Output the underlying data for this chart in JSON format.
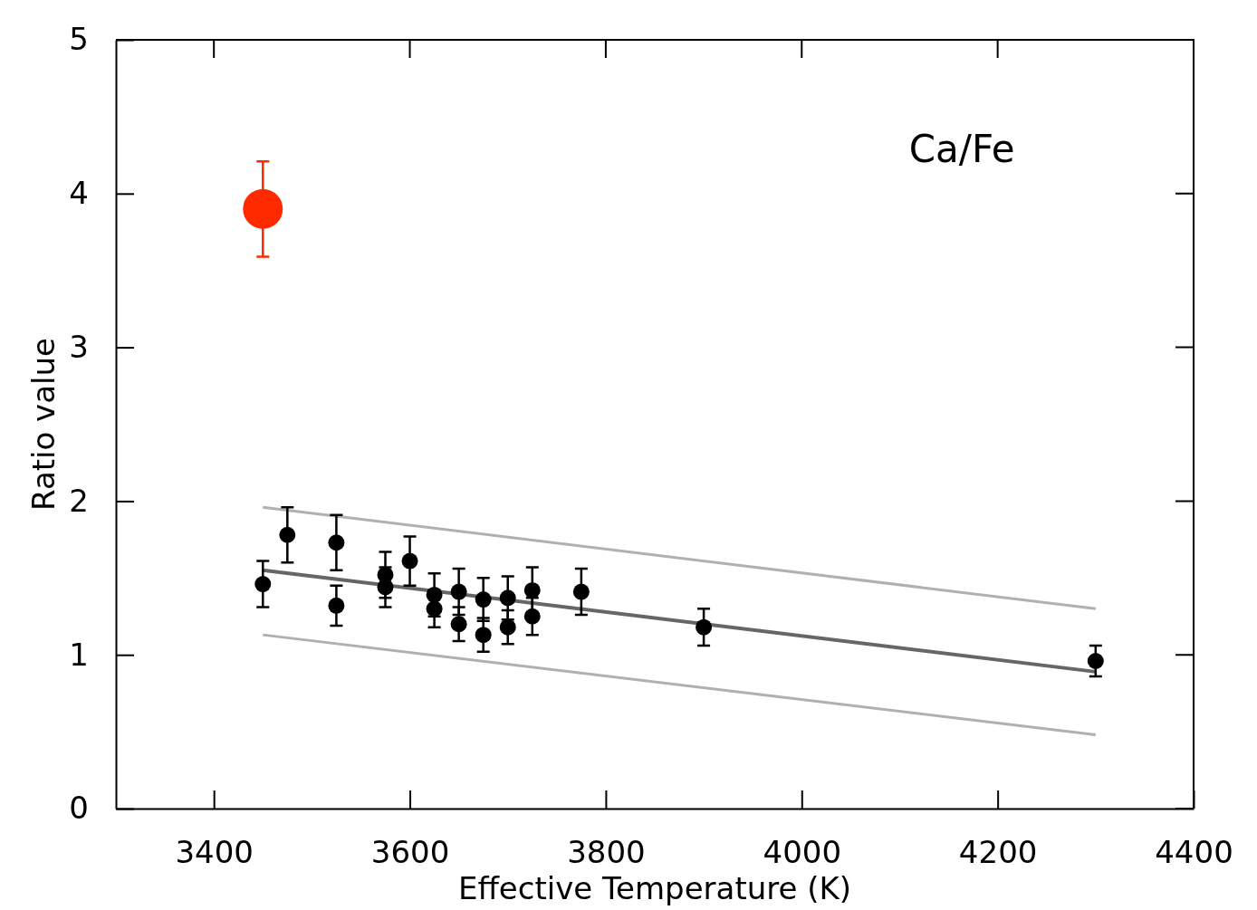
{
  "chart_data": {
    "type": "scatter",
    "xlabel": "Effective Temperature (K)",
    "ylabel": "Ratio value",
    "annotations": [
      "Ca/Fe"
    ],
    "xlim": [
      3300,
      4400
    ],
    "ylim": [
      0,
      5
    ],
    "xticks": [
      3400,
      3600,
      3800,
      4000,
      4200,
      4400
    ],
    "yticks": [
      0,
      1,
      2,
      3,
      4,
      5
    ],
    "grid": false,
    "marker": "circle",
    "series": [
      {
        "type": "line",
        "color": "#b0b0b0",
        "x": [
          3450,
          4300
        ],
        "values": [
          1.96,
          1.3
        ],
        "line_style": "solid",
        "marker": "none"
      },
      {
        "type": "line",
        "color": "#b0b0b0",
        "x": [
          3450,
          4300
        ],
        "values": [
          1.13,
          0.48
        ],
        "line_style": "solid",
        "marker": "none"
      },
      {
        "type": "line",
        "color": "#666666",
        "x": [
          3450,
          4300
        ],
        "values": [
          1.55,
          0.89
        ],
        "line_style": "solid",
        "marker": "none"
      },
      {
        "color": "#000000",
        "x": [
          3450,
          3475,
          3525,
          3525,
          3575,
          3575,
          3600,
          3625,
          3625,
          3650,
          3650,
          3675,
          3675,
          3700,
          3700,
          3725,
          3725,
          3775,
          3900,
          4300
        ],
        "values": [
          1.46,
          1.78,
          1.73,
          1.32,
          1.52,
          1.44,
          1.61,
          1.39,
          1.3,
          1.41,
          1.2,
          1.36,
          1.13,
          1.37,
          1.18,
          1.42,
          1.25,
          1.41,
          1.18,
          0.96
        ],
        "errors": [
          0.15,
          0.18,
          0.18,
          0.13,
          0.15,
          0.13,
          0.16,
          0.14,
          0.12,
          0.15,
          0.11,
          0.14,
          0.11,
          0.14,
          0.11,
          0.15,
          0.12,
          0.15,
          0.12,
          0.1
        ]
      },
      {
        "color": "#ff2a00",
        "x": [
          3450
        ],
        "values": [
          3.9
        ],
        "errors": [
          0.31
        ]
      }
    ]
  }
}
